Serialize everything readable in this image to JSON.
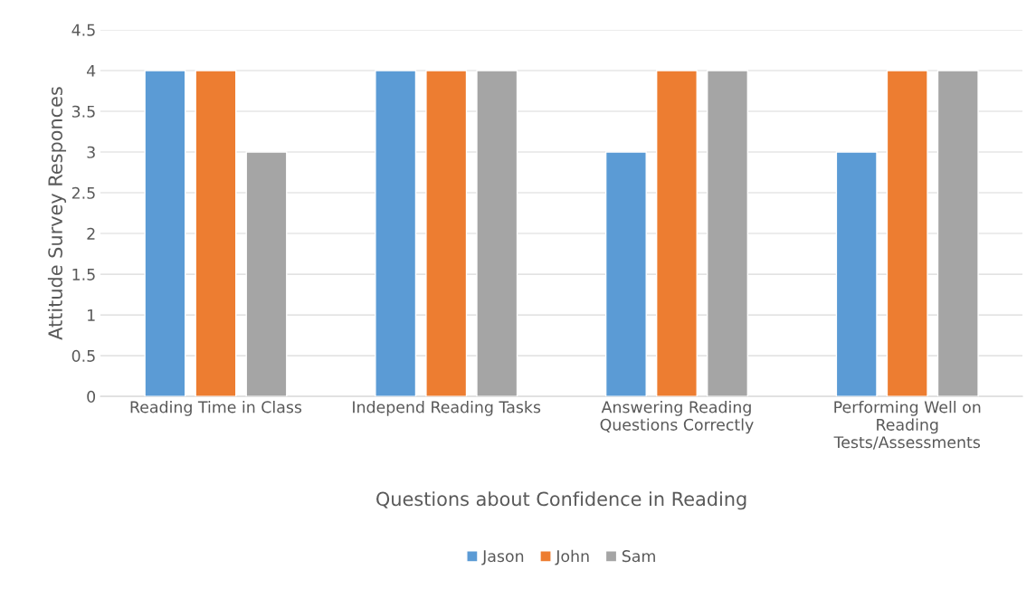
{
  "chart_data": {
    "type": "bar",
    "xlabel": "Questions about Confidence in Reading",
    "ylabel": "Attitude Survey Responces",
    "categories": [
      "Reading Time in Class",
      "Independ Reading Tasks",
      "Answering Reading\nQuestions Correctly",
      "Performing Well on\nReading\nTests/Assessments"
    ],
    "series": [
      {
        "name": "Jason",
        "color": "#5b9bd5",
        "values": [
          4,
          4,
          3,
          3
        ]
      },
      {
        "name": "John",
        "color": "#ed7d31",
        "values": [
          4,
          4,
          4,
          4
        ]
      },
      {
        "name": "Sam",
        "color": "#a5a5a5",
        "values": [
          3,
          4,
          4,
          4
        ]
      }
    ],
    "ylim": [
      0,
      4.5
    ],
    "yticks": [
      0,
      0.5,
      1,
      1.5,
      2,
      2.5,
      3,
      3.5,
      4,
      4.5
    ],
    "grid": "y",
    "legend": "bottom"
  }
}
